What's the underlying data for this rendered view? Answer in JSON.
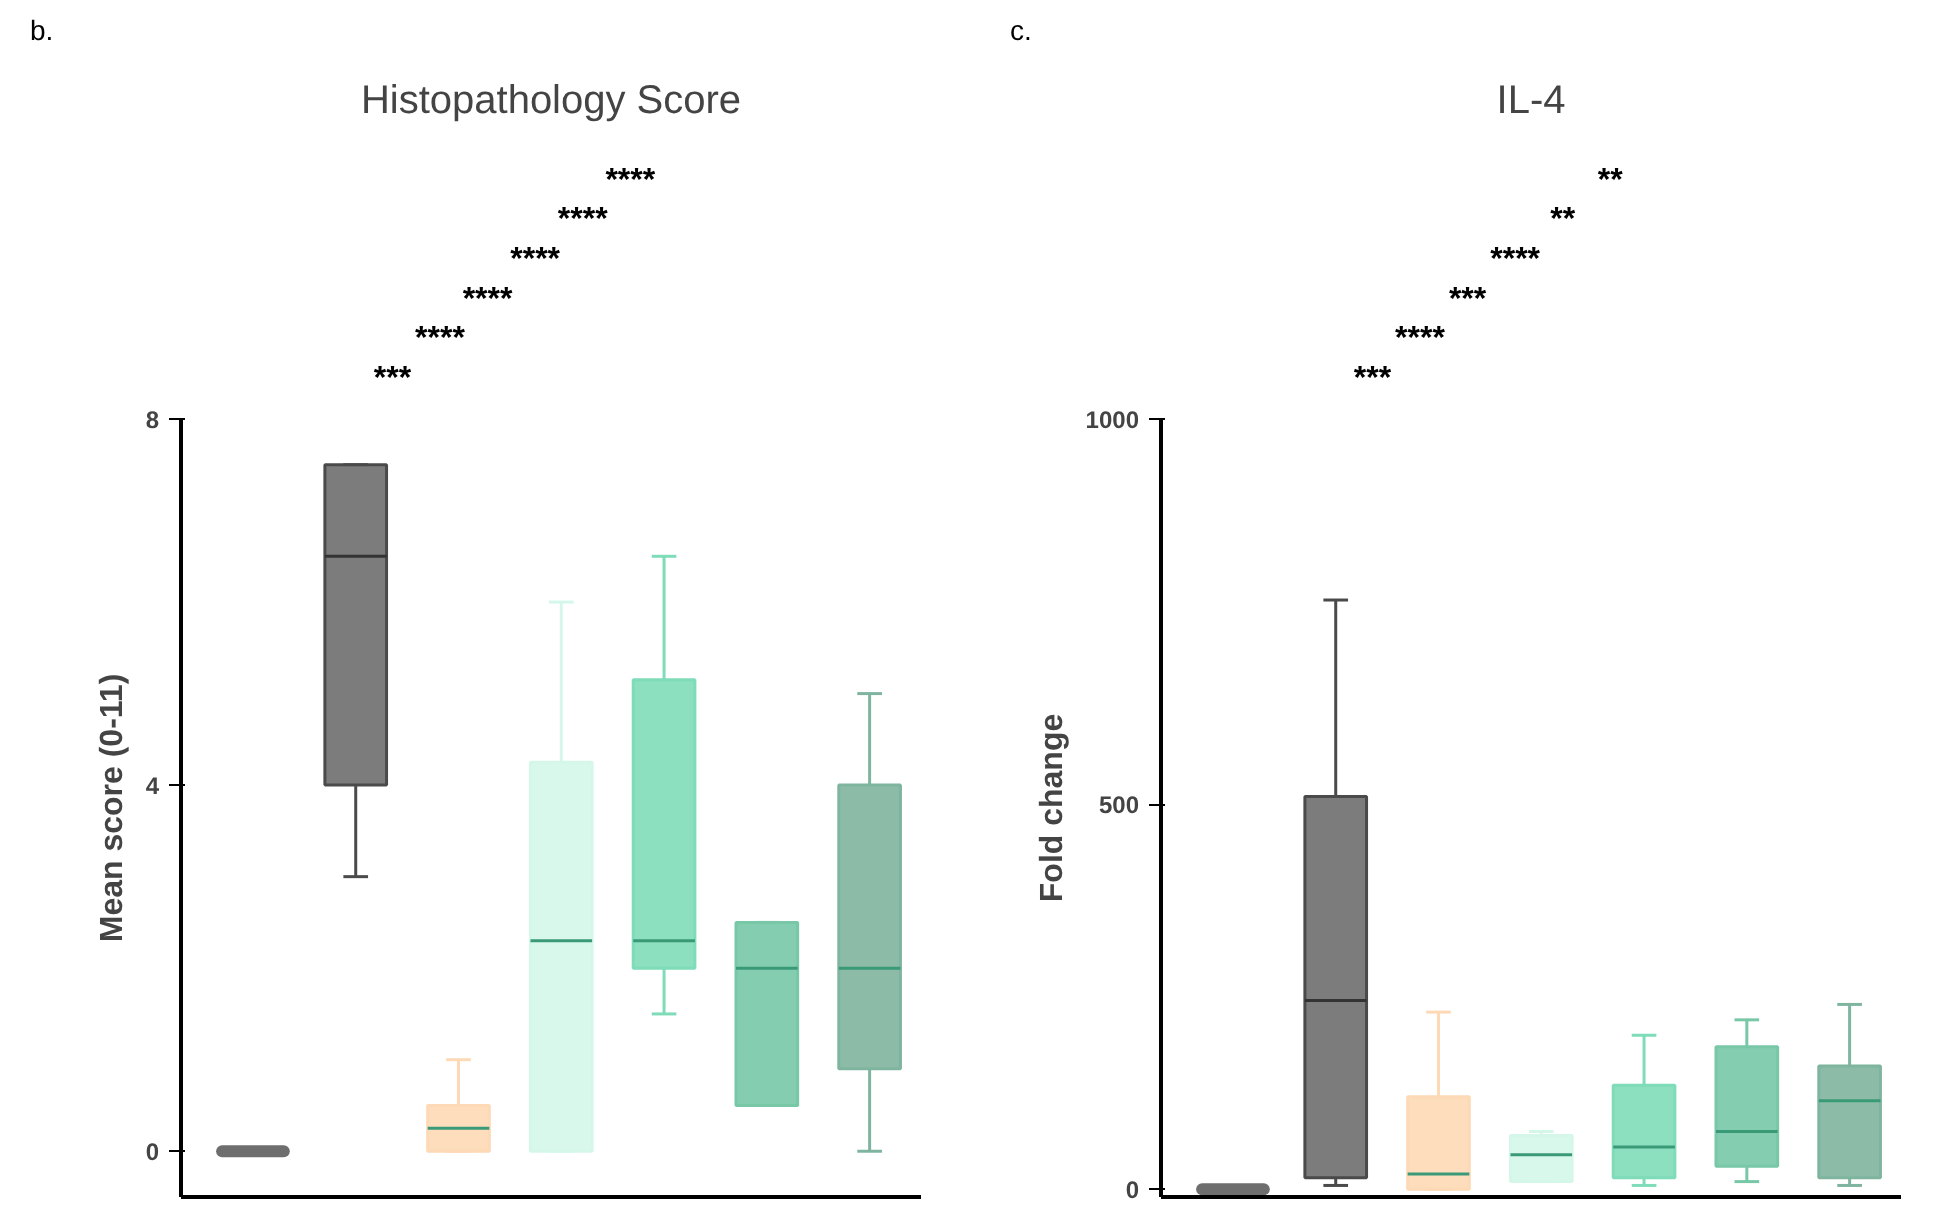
{
  "chart_data": [
    {
      "type": "box",
      "title": "Histopathology Score",
      "ylabel": "Mean score (0-11)",
      "categories": [
        null,
        null,
        null,
        null,
        null,
        null,
        null
      ],
      "ylim": [
        -0.5,
        8
      ],
      "yticks": [
        0,
        4,
        8
      ],
      "grid": false,
      "tick_labels": "y",
      "colors": [
        "#6e6e6e",
        "#6e6e6e",
        "#fdd9b5",
        "#d5f7ea",
        "#7fdcb8",
        "#78c8a8",
        "#7fb59f"
      ],
      "boxes": [
        {
          "low": 0,
          "q1": 0,
          "median": 0,
          "q3": 0,
          "high": 0
        },
        {
          "low": 3,
          "q1": 4,
          "median": 6.5,
          "q3": 7.5,
          "high": 7.5
        },
        {
          "low": 0,
          "q1": 0,
          "median": 0.25,
          "q3": 0.5,
          "high": 1
        },
        {
          "low": 0,
          "q1": 0,
          "median": 2.3,
          "q3": 4.25,
          "high": 6
        },
        {
          "low": 1.5,
          "q1": 2,
          "median": 2.3,
          "q3": 5.15,
          "high": 6.5
        },
        {
          "low": 0.5,
          "q1": 0.5,
          "median": 2,
          "q3": 2.5,
          "high": 2.5
        },
        {
          "low": 0,
          "q1": 0.9,
          "median": 2,
          "q3": 4,
          "high": 5
        }
      ],
      "annotations": [
        "b.",
        "****",
        "****",
        "****",
        "****",
        "****",
        "***"
      ]
    },
    {
      "type": "box",
      "title": "IL-4",
      "ylabel": "Fold change",
      "categories": [
        null,
        null,
        null,
        null,
        null,
        null,
        null
      ],
      "ylim": [
        -10,
        1000
      ],
      "yticks": [
        0,
        500,
        1000
      ],
      "grid": false,
      "tick_labels": "y",
      "colors": [
        "#6e6e6e",
        "#6e6e6e",
        "#fdd9b5",
        "#d5f7ea",
        "#7fdcb8",
        "#78c8a8",
        "#7fb59f"
      ],
      "boxes": [
        {
          "low": 0,
          "q1": 0,
          "median": 0,
          "q3": 0,
          "high": 0
        },
        {
          "low": 5,
          "q1": 15,
          "median": 245,
          "q3": 510,
          "high": 765
        },
        {
          "low": 0,
          "q1": 0,
          "median": 20,
          "q3": 120,
          "high": 230
        },
        {
          "low": 10,
          "q1": 10,
          "median": 45,
          "q3": 70,
          "high": 75
        },
        {
          "low": 5,
          "q1": 15,
          "median": 55,
          "q3": 135,
          "high": 200
        },
        {
          "low": 10,
          "q1": 30,
          "median": 75,
          "q3": 185,
          "high": 220
        },
        {
          "low": 5,
          "q1": 15,
          "median": 115,
          "q3": 160,
          "high": 240
        }
      ],
      "annotations": [
        "c.",
        "**",
        "**",
        "****",
        "***",
        "****",
        "***"
      ]
    }
  ]
}
